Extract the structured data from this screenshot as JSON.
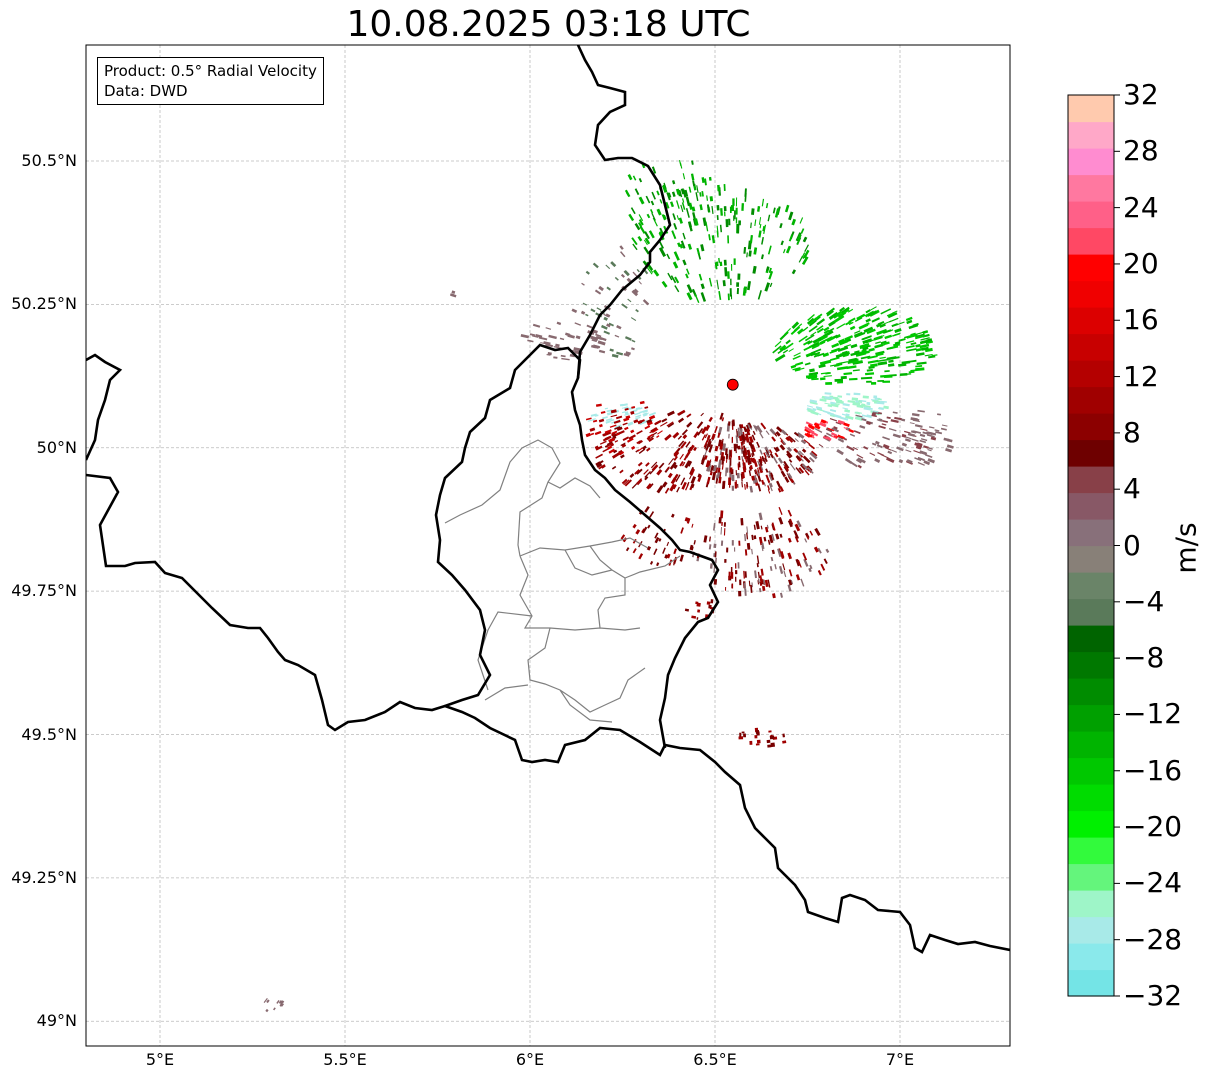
{
  "title": "10.08.2025 03:18 UTC",
  "info": {
    "product": "Product: 0.5° Radial Velocity",
    "source": "Data: DWD"
  },
  "map": {
    "lon_range": [
      4.8,
      7.3
    ],
    "lat_range": [
      48.95,
      50.7
    ],
    "lat_ticks": [
      {
        "value": 50.5,
        "label": "50.5°N"
      },
      {
        "value": 50.25,
        "label": "50.25°N"
      },
      {
        "value": 50.0,
        "label": "50°N"
      },
      {
        "value": 49.75,
        "label": "49.75°N"
      },
      {
        "value": 49.5,
        "label": "49.5°N"
      },
      {
        "value": 49.25,
        "label": "49.25°N"
      },
      {
        "value": 49.0,
        "label": "49°N"
      }
    ],
    "lon_ticks": [
      {
        "value": 5.0,
        "label": "5°E"
      },
      {
        "value": 5.5,
        "label": "5.5°E"
      },
      {
        "value": 6.0,
        "label": "6°E"
      },
      {
        "value": 6.5,
        "label": "6.5°E"
      },
      {
        "value": 7.0,
        "label": "7°E"
      }
    ],
    "radar_site": {
      "lon": 6.548,
      "lat": 50.11,
      "color": "#ff0000"
    },
    "grid": true,
    "country_border_color": "#000000",
    "region_border_color": "#808080"
  },
  "colorbar": {
    "unit": "m/s",
    "min": -32,
    "max": 32,
    "tick_labels": [
      {
        "value": 32,
        "label": "32"
      },
      {
        "value": 28,
        "label": "28"
      },
      {
        "value": 24,
        "label": "24"
      },
      {
        "value": 20,
        "label": "20"
      },
      {
        "value": 16,
        "label": "16"
      },
      {
        "value": 12,
        "label": "12"
      },
      {
        "value": 8,
        "label": "8"
      },
      {
        "value": 4,
        "label": "4"
      },
      {
        "value": 0,
        "label": "0"
      },
      {
        "value": -4,
        "label": "−4"
      },
      {
        "value": -8,
        "label": "−8"
      },
      {
        "value": -12,
        "label": "−12"
      },
      {
        "value": -16,
        "label": "−16"
      },
      {
        "value": -20,
        "label": "−20"
      },
      {
        "value": -24,
        "label": "−24"
      },
      {
        "value": -28,
        "label": "−28"
      },
      {
        "value": -32,
        "label": "−32"
      }
    ],
    "colors": [
      "#74e4e6",
      "#8ae9eb",
      "#a8eae8",
      "#9ef5c8",
      "#64f57c",
      "#32fa3c",
      "#00f000",
      "#00dc00",
      "#00c800",
      "#00b400",
      "#00a000",
      "#008c00",
      "#007800",
      "#006400",
      "#5a7a5a",
      "#6a8468",
      "#888078",
      "#88707a",
      "#885866",
      "#884048",
      "#6e0000",
      "#8c0000",
      "#a00000",
      "#b40000",
      "#c80000",
      "#dc0000",
      "#f00000",
      "#ff0000",
      "#ff4864",
      "#ff6088",
      "#ff78a0",
      "#ff8cd0",
      "#ffa8c8",
      "#ffcaae"
    ]
  },
  "echo_colors": {
    "inbound_strong": "#00b400",
    "inbound_dark": "#008c00",
    "inbound_light": "#a8eae8",
    "near_zero": "#886a70",
    "outbound": "#a00000",
    "outbound_dark": "#780000"
  }
}
